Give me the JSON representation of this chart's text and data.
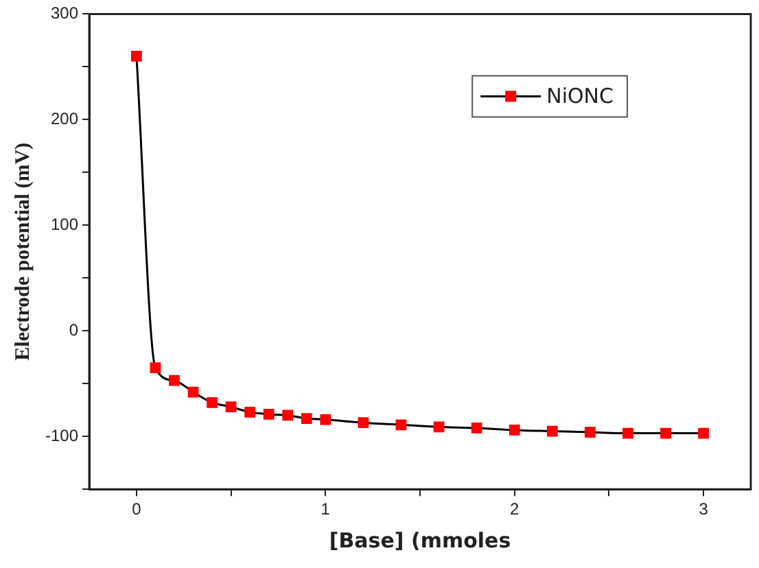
{
  "chart_data": {
    "type": "line",
    "xlabel": "[Base] (mmoles",
    "ylabel": "Electrode potential (mV)",
    "x": [
      0,
      0.1,
      0.2,
      0.3,
      0.4,
      0.5,
      0.6,
      0.7,
      0.8,
      0.9,
      1.0,
      1.2,
      1.4,
      1.6,
      1.8,
      2.0,
      2.2,
      2.4,
      2.6,
      2.8,
      3.0
    ],
    "series": [
      {
        "name": "NiONC",
        "color": "#000000",
        "colors": [
          "#ff0000",
          "#ff0000",
          "#ff0000",
          "#ff0000",
          "#ff0000",
          "#ff0000",
          "#ff0000",
          "#ff0000",
          "#ff0000",
          "#ff0000",
          "#ff0000",
          "#ff0000",
          "#ff0000",
          "#ff0000",
          "#ff0000",
          "#ff0000",
          "#ff0000",
          "#ff0000",
          "#ff0000",
          "#ff0000",
          "#ff0000"
        ],
        "values": [
          260,
          -35,
          -47,
          -58,
          -68,
          -72,
          -77,
          -79,
          -80,
          -83,
          -84,
          -87,
          -89,
          -91,
          -92,
          -94,
          -95,
          -96,
          -97,
          -97,
          -97
        ]
      }
    ],
    "xlim": [
      -0.25,
      3.25
    ],
    "xticks": [
      0,
      {
        "value": 0.5,
        "label": null
      },
      1,
      {
        "value": 1.5,
        "label": null
      },
      2,
      {
        "value": 2.5,
        "label": null
      },
      3
    ],
    "ylim": [
      -150,
      300
    ],
    "yticks": [
      {
        "value": -150,
        "label": null
      },
      -100,
      {
        "value": -50,
        "label": null
      },
      0,
      {
        "value": 50,
        "label": null
      },
      100,
      {
        "value": 150,
        "label": null
      },
      200,
      {
        "value": 250,
        "label": null
      },
      300
    ],
    "grid": false,
    "legend": "top right",
    "marker": "square",
    "line_style": "solid"
  }
}
